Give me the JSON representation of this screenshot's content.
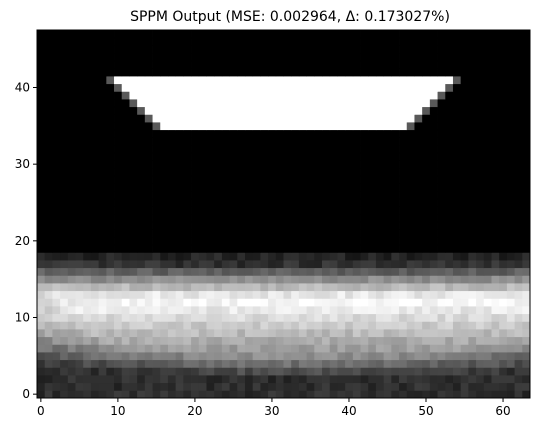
{
  "chart_data": {
    "type": "heatmap",
    "title": "SPPM Output (MSE: 0.002964, Δ: 0.173027%)",
    "xlabel": "",
    "ylabel": "",
    "colormap": "gray",
    "value_range": [
      0,
      1
    ],
    "x_range": [
      -0.5,
      63.5
    ],
    "y_range": [
      -0.5,
      47.5
    ],
    "y_origin": "bottom",
    "grid": false,
    "legend": "none",
    "xticks": [
      0,
      10,
      20,
      30,
      40,
      50,
      60
    ],
    "yticks": [
      0,
      10,
      20,
      30,
      40
    ],
    "grid_size": {
      "cols": 64,
      "rows": 48
    },
    "regions": {
      "background": {
        "rows": [
          18,
          47
        ],
        "value": 0.0
      },
      "light_trapezoid": {
        "top_row": 41,
        "bottom_row": 35,
        "value": 1.0,
        "top_span": [
          10,
          53
        ],
        "bottom_span": [
          16,
          47
        ]
      },
      "floor_glow": {
        "rows": [
          0,
          17
        ],
        "center": [
          35,
          12.5
        ],
        "peak_value": 1.0,
        "base_value": 0.18,
        "core_span_x": [
          8,
          60
        ]
      }
    }
  }
}
